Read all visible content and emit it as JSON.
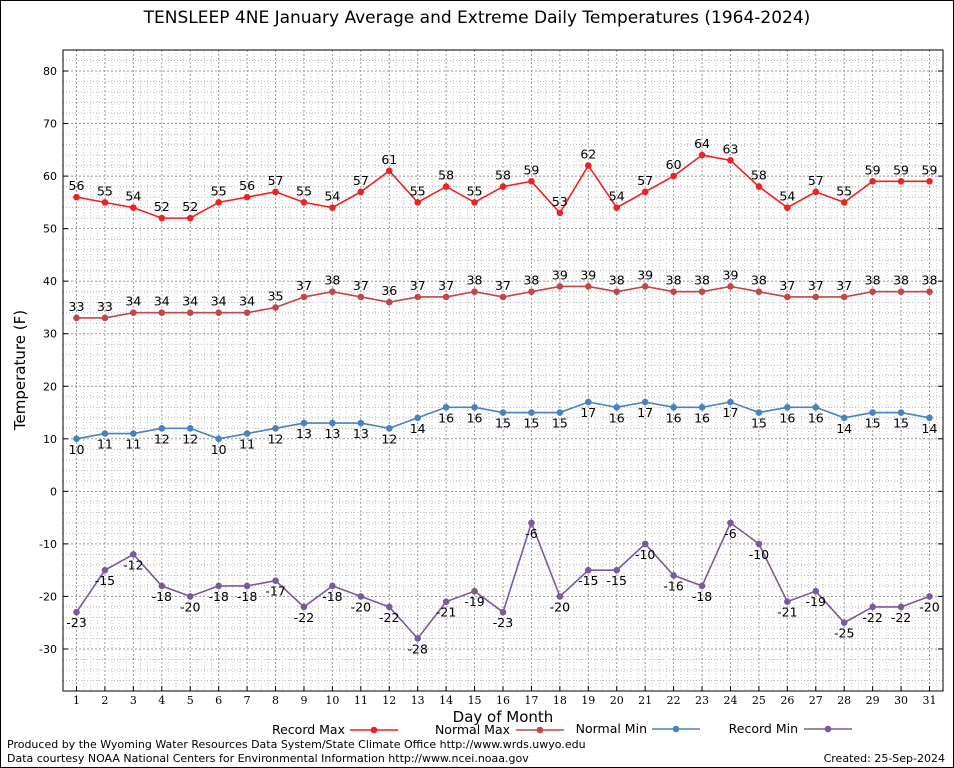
{
  "chart_data": {
    "type": "line",
    "title": "TENSLEEP 4NE January Average and Extreme Daily Temperatures (1964-2024)",
    "xlabel": "Day of Month",
    "ylabel": "Temperature (F)",
    "ylim": [
      -38,
      84
    ],
    "yticks": [
      -30,
      -20,
      -10,
      0,
      10,
      20,
      30,
      40,
      50,
      60,
      70,
      80
    ],
    "x": [
      1,
      2,
      3,
      4,
      5,
      6,
      7,
      8,
      9,
      10,
      11,
      12,
      13,
      14,
      15,
      16,
      17,
      18,
      19,
      20,
      21,
      22,
      23,
      24,
      25,
      26,
      27,
      28,
      29,
      30,
      31
    ],
    "grid": true,
    "legend_position": "bottom",
    "series": [
      {
        "name": "Record Max",
        "color": "#ee2222",
        "label_pos": "above",
        "values": [
          56,
          55,
          54,
          52,
          52,
          55,
          56,
          57,
          55,
          54,
          57,
          61,
          55,
          58,
          55,
          58,
          59,
          53,
          62,
          54,
          57,
          60,
          64,
          63,
          58,
          54,
          57,
          55,
          59,
          59,
          59
        ]
      },
      {
        "name": "Normal Max",
        "color": "#c04848",
        "label_pos": "above",
        "values": [
          33,
          33,
          34,
          34,
          34,
          34,
          34,
          35,
          37,
          38,
          37,
          36,
          37,
          37,
          38,
          37,
          38,
          39,
          39,
          38,
          39,
          38,
          38,
          39,
          38,
          37,
          37,
          37,
          38,
          38,
          38
        ]
      },
      {
        "name": "Normal Min",
        "color": "#4a82c0",
        "label_pos": "below",
        "values": [
          10,
          11,
          11,
          12,
          12,
          10,
          11,
          12,
          13,
          13,
          13,
          12,
          14,
          16,
          16,
          15,
          15,
          15,
          17,
          16,
          17,
          16,
          16,
          17,
          15,
          16,
          16,
          14,
          15,
          15,
          14
        ]
      },
      {
        "name": "Record Min",
        "color": "#7a5a9c",
        "label_pos": "below",
        "values": [
          -23,
          -15,
          -12,
          -18,
          -20,
          -18,
          -18,
          -17,
          -22,
          -18,
          -20,
          -22,
          -28,
          -21,
          -19,
          -23,
          -6,
          -20,
          -15,
          -15,
          -10,
          -16,
          -18,
          -6,
          -10,
          -21,
          -19,
          -25,
          -22,
          -22,
          -20
        ]
      }
    ]
  },
  "footer": {
    "credit_line1": "Produced by the Wyoming Water Resources Data System/State Climate Office http://www.wrds.uwyo.edu",
    "credit_line2": "Data courtesy NOAA National Centers for Environmental Information http://www.ncei.noaa.gov",
    "created": "Created:  25-Sep-2024"
  }
}
